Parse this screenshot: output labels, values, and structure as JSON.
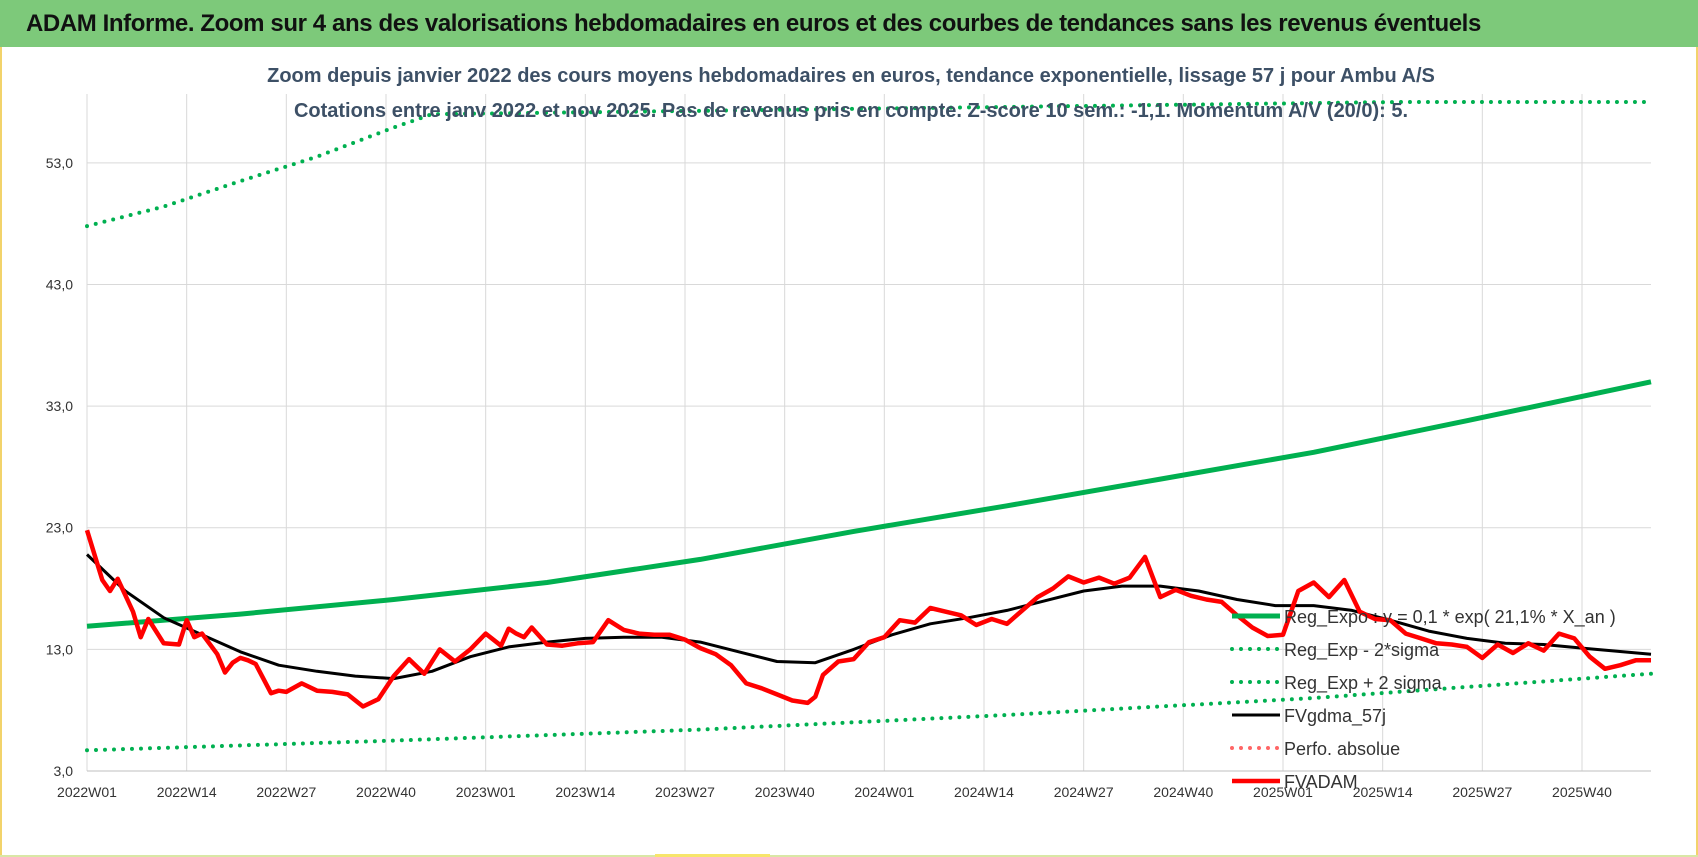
{
  "banner": {
    "title": "ADAM Informe. Zoom sur 4 ans des valorisations hebdomadaires en euros et des courbes de tendances sans les revenus éventuels",
    "color": "#7dc97a"
  },
  "chart_data": {
    "type": "line",
    "title": "Zoom depuis janvier 2022 des cours moyens hebdomadaires en euros, tendance exponentielle, lissage 57 j pour Ambu A/S",
    "subtitle": "Cotations entre janv 2022 et nov 2025. Pas de revenus pris en compte. Z-score 10 sem.: -1,1. Momentum A/V (20/0): 5.",
    "xlabel": "",
    "ylabel": "",
    "ylim": [
      3,
      58
    ],
    "y_ticks": [
      "53,0",
      "43,0",
      "33,0",
      "23,0",
      "13,0",
      "3,0"
    ],
    "y_tick_values": [
      53,
      43,
      33,
      23,
      13,
      3
    ],
    "x_ticks": [
      "2022W01",
      "2022W14",
      "2022W27",
      "2022W40",
      "2023W01",
      "2023W14",
      "2023W27",
      "2023W40",
      "2024W01",
      "2024W14",
      "2024W27",
      "2024W40",
      "2025W01",
      "2025W14",
      "2025W27",
      "2025W40"
    ],
    "x_tick_weeks": [
      0,
      13,
      26,
      39,
      52,
      65,
      78,
      91,
      104,
      117,
      130,
      143,
      156,
      169,
      182,
      195
    ],
    "grid": true,
    "legend_position": "right",
    "series": [
      {
        "name": "Reg_Expo : y = 0,1 * exp( 21,1% * X_an )",
        "color": "#00b050",
        "style": "solid",
        "x": [
          0,
          20,
          40,
          60,
          80,
          100,
          120,
          140,
          160,
          180,
          204
        ],
        "values": [
          14.9,
          15.9,
          17.1,
          18.5,
          20.4,
          22.7,
          24.8,
          27.0,
          29.2,
          31.8,
          35.0
        ]
      },
      {
        "name": "Reg_Exp - 2*sigma",
        "color": "#00b050",
        "style": "dotted",
        "x": [
          0,
          40,
          80,
          120,
          160,
          204
        ],
        "values": [
          4.7,
          5.5,
          6.4,
          7.6,
          9.0,
          11.0
        ]
      },
      {
        "name": "Reg_Exp + 2 sigma",
        "color": "#00b050",
        "style": "dotted",
        "x": [
          0,
          10,
          20,
          30,
          40,
          45,
          171,
          204
        ],
        "values": [
          47.8,
          49.4,
          51.5,
          53.5,
          55.9,
          57.0,
          58.0,
          58.0
        ]
      },
      {
        "name": "FVgdma_57j",
        "color": "#000000",
        "style": "solid",
        "x": [
          0,
          5,
          10,
          15,
          20,
          25,
          30,
          35,
          40,
          45,
          50,
          55,
          60,
          65,
          70,
          75,
          80,
          85,
          90,
          95,
          100,
          105,
          110,
          115,
          120,
          125,
          130,
          135,
          140,
          145,
          150,
          155,
          160,
          165,
          170,
          175,
          180,
          185,
          190,
          195,
          204
        ],
        "values": [
          20.8,
          17.8,
          15.6,
          14.2,
          12.8,
          11.7,
          11.2,
          10.8,
          10.6,
          11.2,
          12.4,
          13.2,
          13.6,
          13.9,
          14.0,
          14.0,
          13.6,
          12.8,
          12.0,
          11.9,
          13.0,
          14.2,
          15.1,
          15.6,
          16.2,
          17.0,
          17.8,
          18.2,
          18.2,
          17.8,
          17.1,
          16.6,
          16.6,
          16.2,
          15.4,
          14.5,
          13.9,
          13.5,
          13.4,
          13.1,
          12.6
        ]
      },
      {
        "name": "Perfo. absolue",
        "color": "#ff6666",
        "style": "dotted",
        "x": [],
        "values": []
      },
      {
        "name": "FVADAM",
        "color": "#ff0000",
        "style": "solid",
        "x": [
          0,
          2,
          3,
          4,
          6,
          7,
          8,
          10,
          12,
          13,
          14,
          15,
          17,
          18,
          19,
          20,
          21,
          22,
          24,
          25,
          26,
          28,
          30,
          32,
          34,
          36,
          38,
          40,
          42,
          44,
          46,
          48,
          50,
          52,
          54,
          55,
          56,
          57,
          58,
          60,
          62,
          64,
          66,
          68,
          70,
          72,
          74,
          76,
          78,
          80,
          82,
          84,
          86,
          88,
          90,
          92,
          94,
          95,
          96,
          98,
          100,
          102,
          104,
          106,
          108,
          110,
          112,
          114,
          116,
          118,
          120,
          122,
          124,
          126,
          128,
          130,
          132,
          134,
          136,
          138,
          140,
          142,
          144,
          146,
          148,
          150,
          152,
          154,
          156,
          158,
          160,
          162,
          164,
          166,
          168,
          170,
          172,
          174,
          176,
          178,
          180,
          182,
          184,
          186,
          188,
          190,
          192,
          194,
          196,
          198,
          200,
          202,
          204
        ],
        "values": [
          22.8,
          18.7,
          17.8,
          18.8,
          16.1,
          14.0,
          15.5,
          13.5,
          13.4,
          15.4,
          14.0,
          14.3,
          12.6,
          11.1,
          11.9,
          12.3,
          12.1,
          11.8,
          9.4,
          9.6,
          9.5,
          10.2,
          9.6,
          9.5,
          9.3,
          8.3,
          8.9,
          10.8,
          12.2,
          11.0,
          13.0,
          12.0,
          13.0,
          14.3,
          13.3,
          14.7,
          14.3,
          14.0,
          14.8,
          13.4,
          13.3,
          13.5,
          13.6,
          15.4,
          14.6,
          14.3,
          14.2,
          14.2,
          13.8,
          13.1,
          12.6,
          11.7,
          10.2,
          9.8,
          9.3,
          8.8,
          8.6,
          9.1,
          10.9,
          12.0,
          12.2,
          13.6,
          14.0,
          15.4,
          15.2,
          16.4,
          16.1,
          15.8,
          15.0,
          15.5,
          15.1,
          16.2,
          17.3,
          18.0,
          19.0,
          18.5,
          18.9,
          18.4,
          18.9,
          20.6,
          17.3,
          17.9,
          17.4,
          17.1,
          16.9,
          15.8,
          14.8,
          14.1,
          14.2,
          17.8,
          18.5,
          17.3,
          18.7,
          16.1,
          15.5,
          15.4,
          14.3,
          13.9,
          13.5,
          13.4,
          13.2,
          12.3,
          13.4,
          12.7,
          13.5,
          12.9,
          14.3,
          13.9,
          12.4,
          11.4,
          11.7,
          12.1,
          12.1
        ]
      }
    ]
  }
}
